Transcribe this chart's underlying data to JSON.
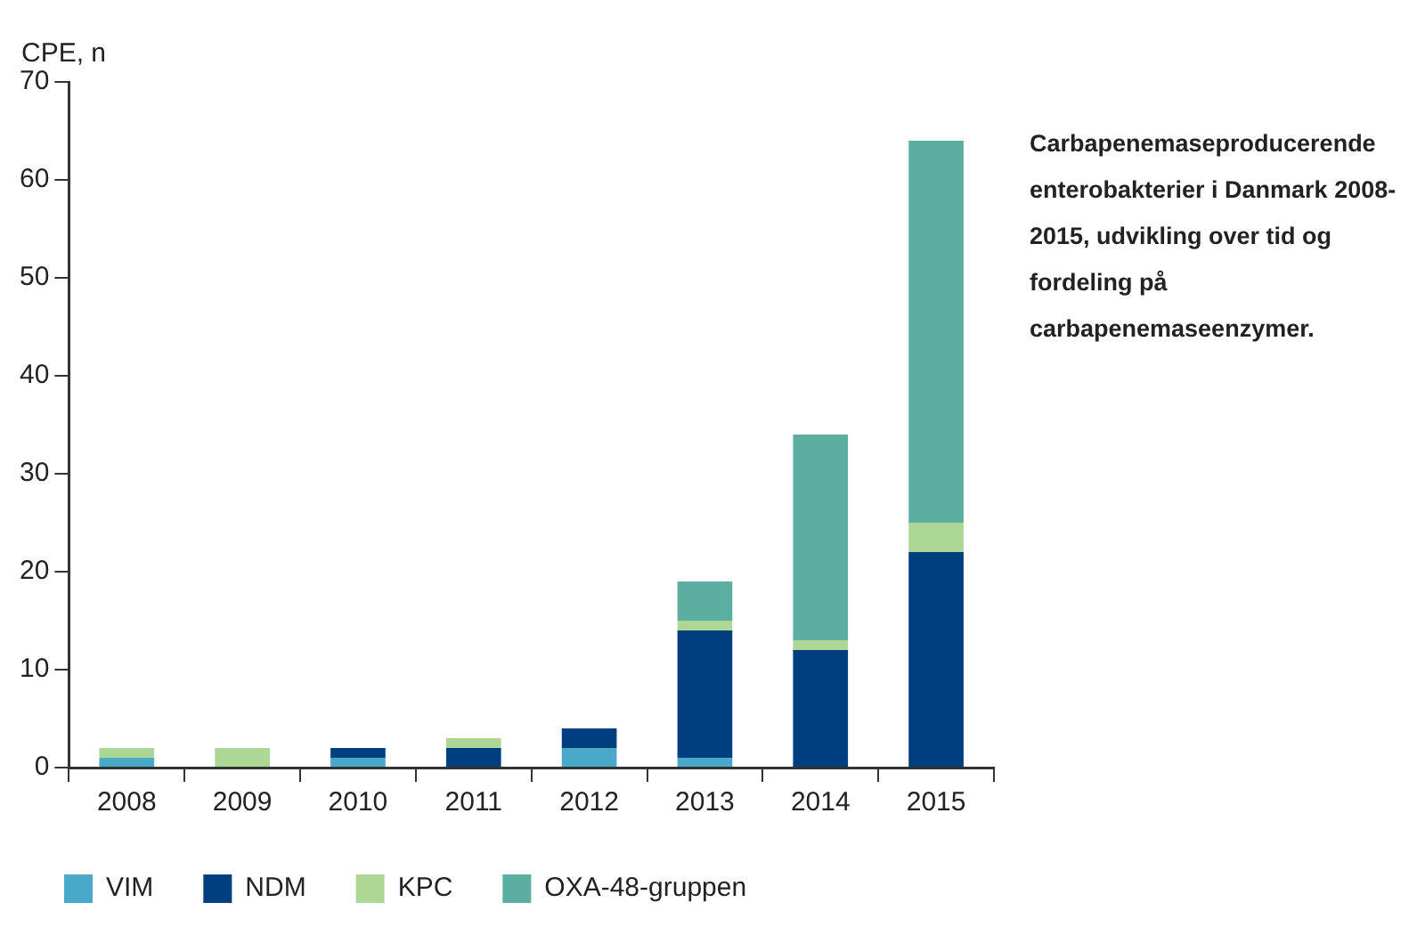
{
  "chart_data": {
    "type": "bar",
    "title": "Carbapenemaseproducerende enterobakterier i Danmark 2008-2015, udvikling over tid og fordeling på carbapenemaseenzymer.",
    "ylabel": "CPE, n",
    "categories": [
      "2008",
      "2009",
      "2010",
      "2011",
      "2012",
      "2013",
      "2014",
      "2015"
    ],
    "stacked": true,
    "series": [
      {
        "name": "VIM",
        "color": "#4aa8c8",
        "values": [
          1,
          0,
          1,
          0,
          2,
          1,
          0,
          0
        ]
      },
      {
        "name": "NDM",
        "color": "#003f7f",
        "values": [
          0,
          0,
          1,
          2,
          2,
          13,
          12,
          22
        ]
      },
      {
        "name": "KPC",
        "color": "#add794",
        "values": [
          1,
          2,
          0,
          1,
          0,
          1,
          1,
          3
        ]
      },
      {
        "name": "OXA-48-gruppen",
        "color": "#5cafa0",
        "values": [
          0,
          0,
          0,
          0,
          0,
          4,
          21,
          39
        ]
      }
    ],
    "ylim": [
      0,
      70
    ],
    "yticks": [
      0,
      10,
      20,
      30,
      40,
      50,
      60,
      70
    ],
    "grid": false,
    "legend": "bottom"
  }
}
